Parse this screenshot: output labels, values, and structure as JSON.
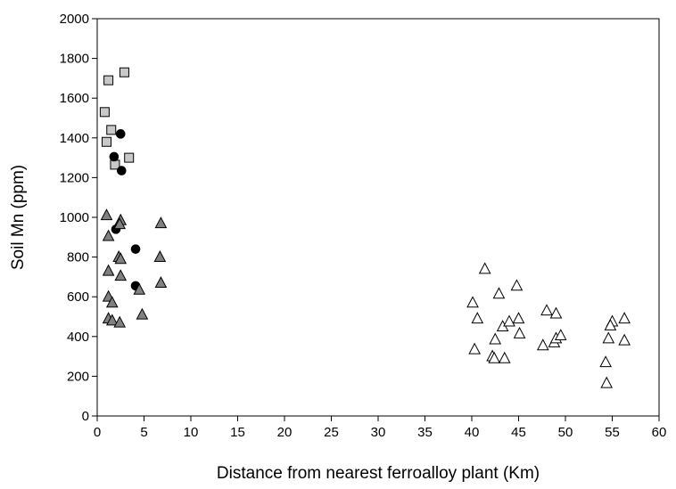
{
  "chart_data": {
    "type": "scatter",
    "title": "",
    "xlabel": "Distance from nearest ferroalloy plant (Km)",
    "ylabel": "Soil Mn (ppm)",
    "xlim": [
      0,
      60
    ],
    "ylim": [
      0,
      2000
    ],
    "xticks": [
      0,
      5,
      10,
      15,
      20,
      25,
      30,
      35,
      40,
      45,
      50,
      55,
      60
    ],
    "yticks": [
      0,
      200,
      400,
      600,
      800,
      1000,
      1200,
      1400,
      1600,
      1800,
      2000
    ],
    "grid": false,
    "legend": "none",
    "series": [
      {
        "marker": "square",
        "fill": "#c8c8c8",
        "points": [
          [
            0.8,
            1530
          ],
          [
            1.2,
            1690
          ],
          [
            2.9,
            1730
          ],
          [
            1.0,
            1380
          ],
          [
            1.5,
            1440
          ],
          [
            1.9,
            1265
          ],
          [
            3.4,
            1300
          ]
        ]
      },
      {
        "marker": "circle",
        "fill": "#000000",
        "points": [
          [
            2.5,
            1420
          ],
          [
            1.8,
            1305
          ],
          [
            2.6,
            1235
          ],
          [
            2.0,
            940
          ],
          [
            4.1,
            840
          ],
          [
            4.1,
            655
          ]
        ]
      },
      {
        "marker": "triangle",
        "fill": "#808080",
        "points": [
          [
            1.0,
            1010
          ],
          [
            2.5,
            985
          ],
          [
            2.4,
            965
          ],
          [
            1.2,
            905
          ],
          [
            2.3,
            800
          ],
          [
            2.5,
            790
          ],
          [
            1.2,
            730
          ],
          [
            2.5,
            705
          ],
          [
            1.2,
            600
          ],
          [
            1.6,
            570
          ],
          [
            1.2,
            490
          ],
          [
            1.6,
            480
          ],
          [
            2.4,
            470
          ],
          [
            4.5,
            635
          ],
          [
            4.8,
            510
          ],
          [
            6.8,
            970
          ],
          [
            6.7,
            800
          ],
          [
            6.8,
            670
          ]
        ]
      },
      {
        "marker": "triangle",
        "fill": "#ffffff",
        "points": [
          [
            41.4,
            740
          ],
          [
            44.8,
            655
          ],
          [
            40.1,
            570
          ],
          [
            42.9,
            615
          ],
          [
            40.6,
            490
          ],
          [
            43.3,
            450
          ],
          [
            44.0,
            475
          ],
          [
            45.0,
            490
          ],
          [
            45.1,
            415
          ],
          [
            42.5,
            385
          ],
          [
            40.3,
            335
          ],
          [
            42.2,
            300
          ],
          [
            42.4,
            290
          ],
          [
            43.5,
            290
          ],
          [
            48.0,
            530
          ],
          [
            49.0,
            515
          ],
          [
            47.6,
            355
          ],
          [
            48.8,
            370
          ],
          [
            49.0,
            390
          ],
          [
            49.5,
            405
          ],
          [
            55.0,
            475
          ],
          [
            54.8,
            455
          ],
          [
            56.3,
            490
          ],
          [
            54.6,
            390
          ],
          [
            56.3,
            380
          ],
          [
            54.3,
            270
          ],
          [
            54.4,
            165
          ]
        ]
      }
    ]
  }
}
